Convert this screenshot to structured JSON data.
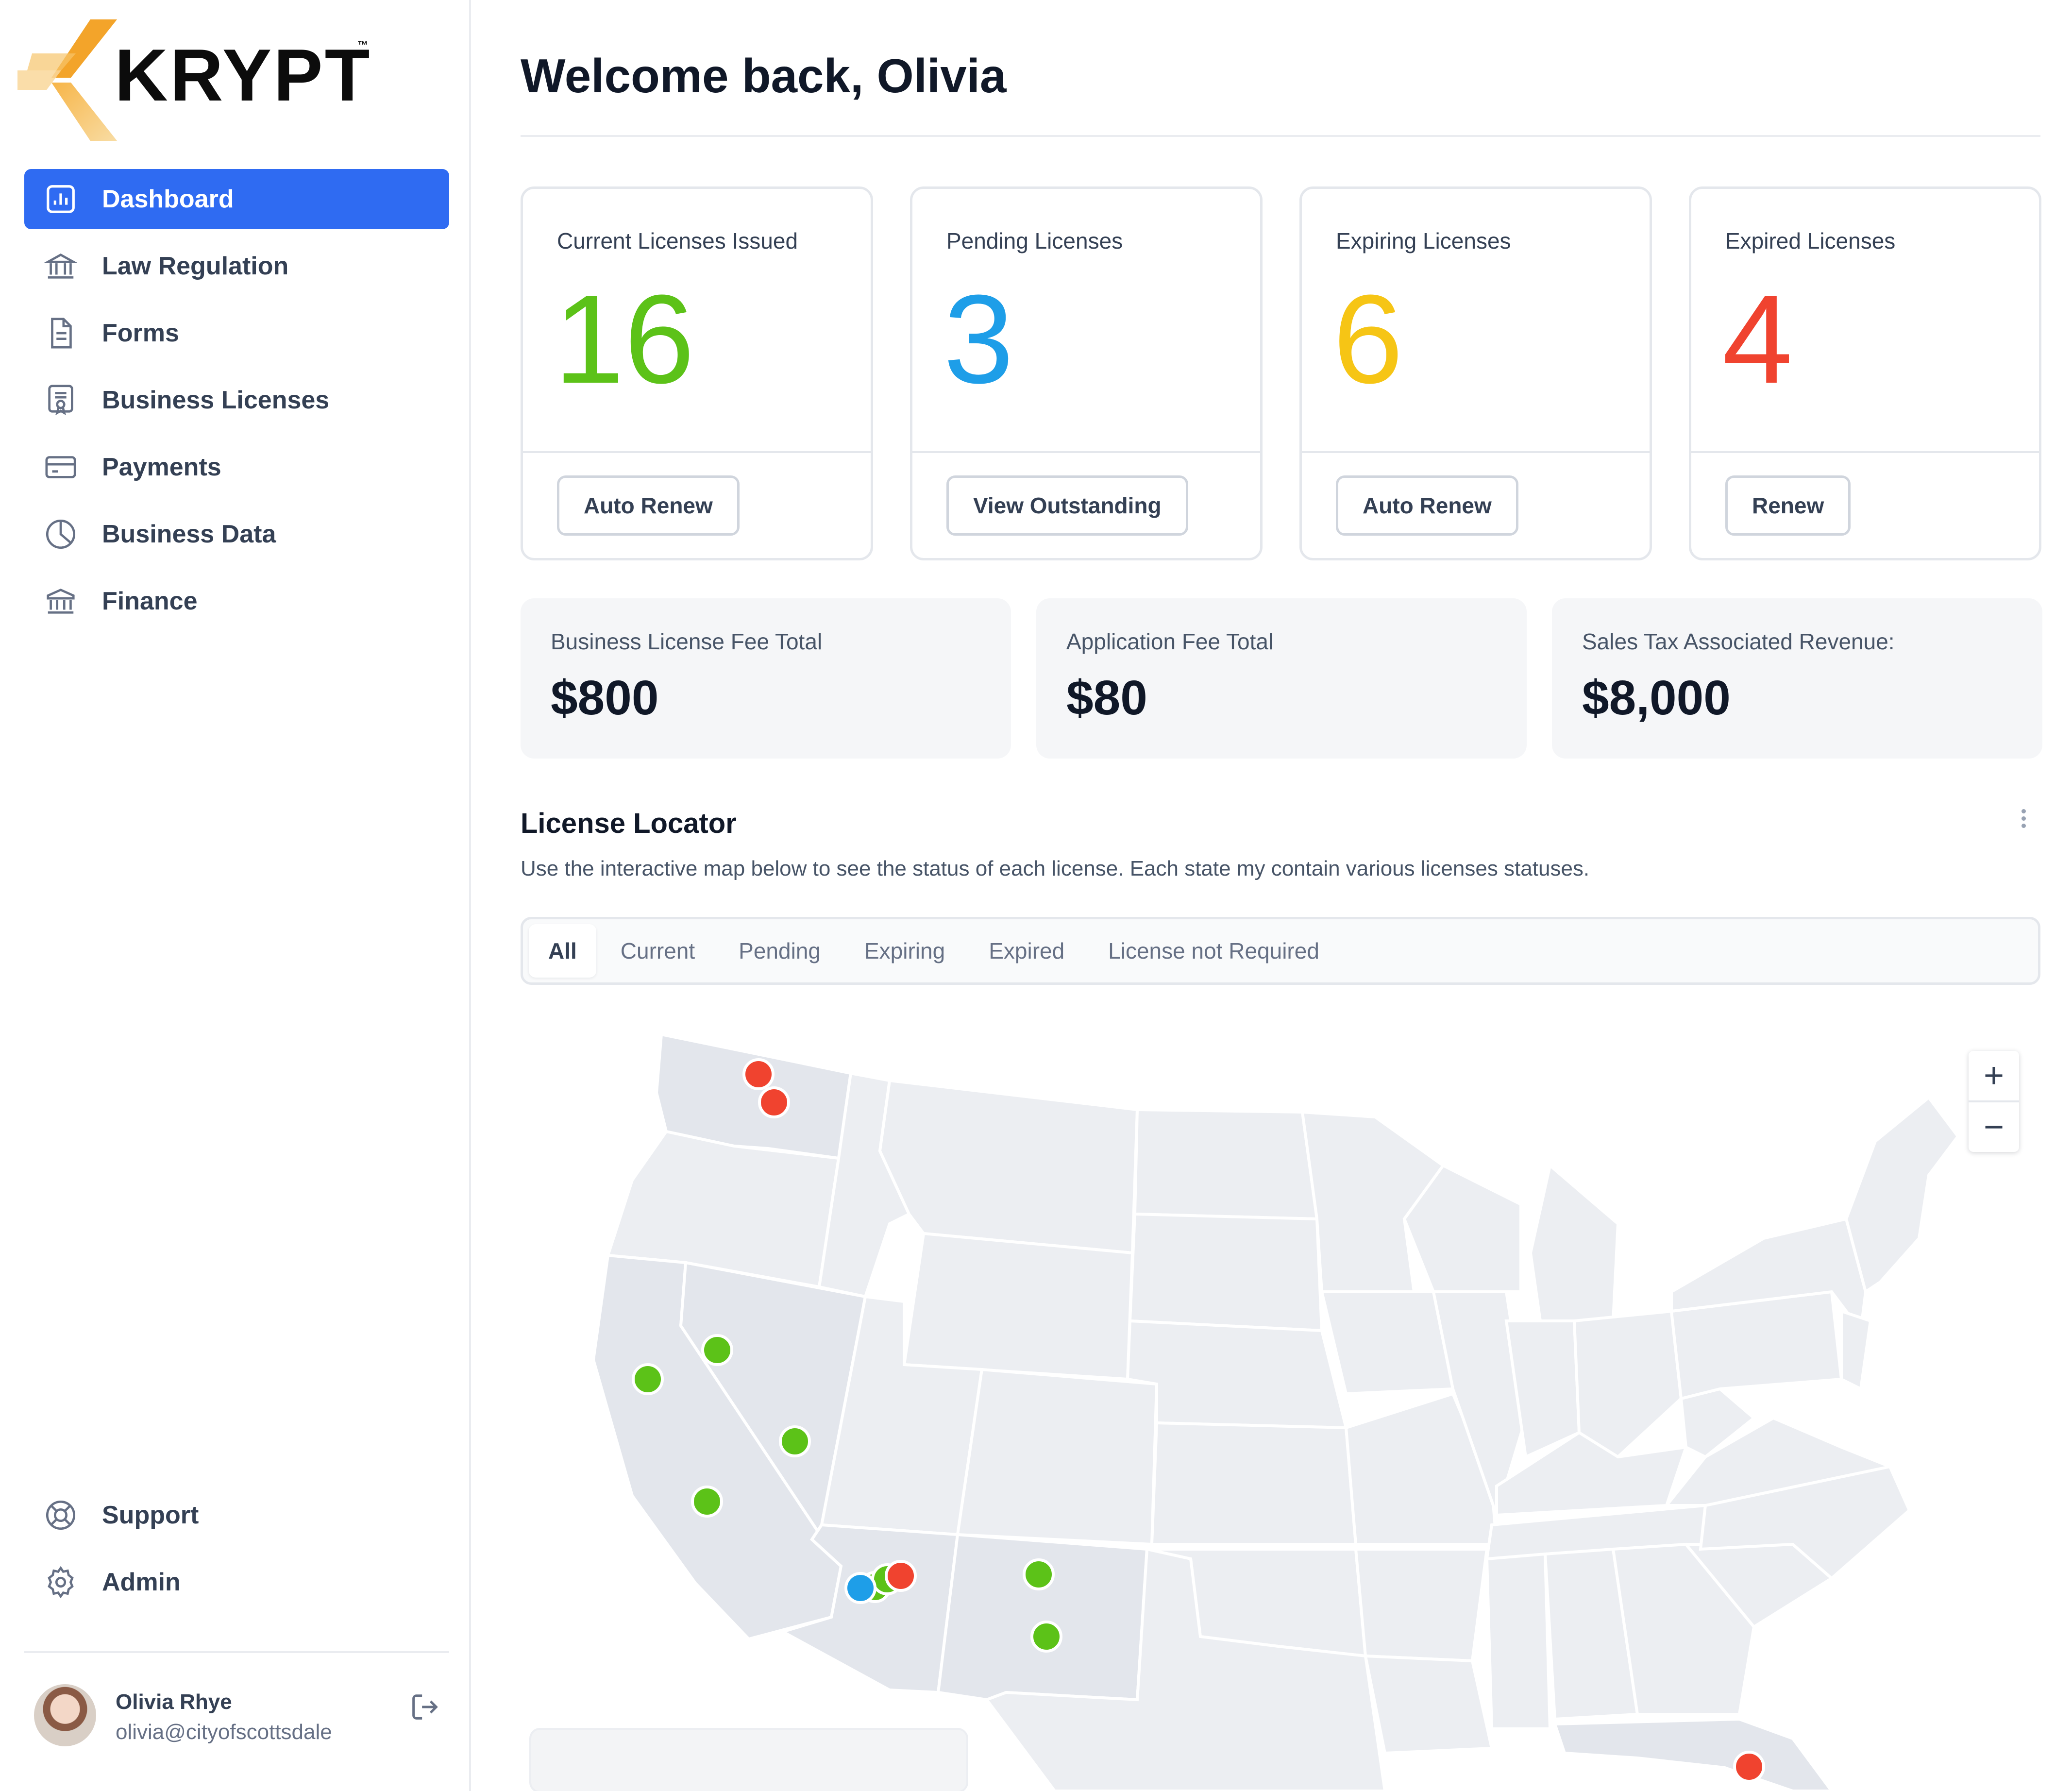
{
  "brand": {
    "name": "KRYPT",
    "tm": "™"
  },
  "nav": {
    "items": [
      {
        "label": "Dashboard",
        "icon": "bar-chart-icon",
        "active": true
      },
      {
        "label": "Law Regulation",
        "icon": "bank-building-icon"
      },
      {
        "label": "Forms",
        "icon": "document-icon"
      },
      {
        "label": "Business Licenses",
        "icon": "certificate-icon"
      },
      {
        "label": "Payments",
        "icon": "credit-card-icon"
      },
      {
        "label": "Business Data",
        "icon": "pie-chart-icon"
      },
      {
        "label": "Finance",
        "icon": "bank-icon"
      }
    ],
    "bottom": [
      {
        "label": "Support",
        "icon": "lifebuoy-icon"
      },
      {
        "label": "Admin",
        "icon": "gear-icon"
      }
    ]
  },
  "user": {
    "name": "Olivia Rhye",
    "email": "olivia@cityofscottsdale"
  },
  "header": {
    "welcome": "Welcome back, Olivia"
  },
  "stats": [
    {
      "label": "Current Licenses Issued",
      "value": "16",
      "color": "#5cc218",
      "button": "Auto Renew"
    },
    {
      "label": "Pending Licenses",
      "value": "3",
      "color": "#1e9ee8",
      "button": "View Outstanding"
    },
    {
      "label": "Expiring Licenses",
      "value": "6",
      "color": "#f6c515",
      "button": "Auto Renew"
    },
    {
      "label": "Expired Licenses",
      "value": "4",
      "color": "#f0432f",
      "button": "Renew"
    }
  ],
  "fees": [
    {
      "label": "Business License Fee Total",
      "value": "$800"
    },
    {
      "label": "Application Fee Total",
      "value": "$80"
    },
    {
      "label": "Sales Tax Associated Revenue:",
      "value": "$8,000"
    }
  ],
  "locator": {
    "title": "License Locator",
    "description": "Use the interactive map below to see the status of each license. Each state my contain various licenses statuses.",
    "tabs": [
      "All",
      "Current",
      "Pending",
      "Expiring",
      "Expired",
      "License not Required"
    ],
    "active_tab": "All",
    "zoom_in": "+",
    "zoom_out": "−",
    "colors": {
      "current": "#5cc218",
      "pending": "#1e9ee8",
      "expired": "#f0432f",
      "land": "#eceef2",
      "land_active": "#e3e6ec",
      "border": "#ffffff"
    }
  }
}
